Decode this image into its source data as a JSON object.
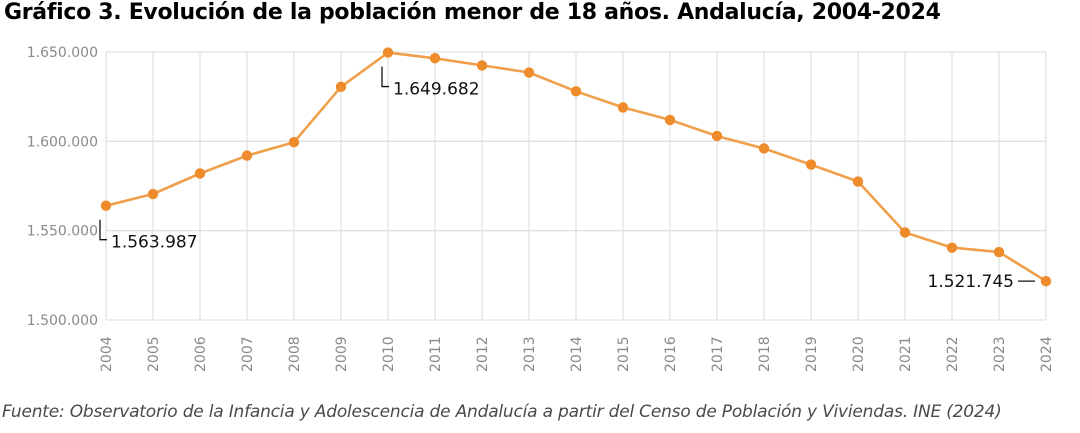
{
  "colors": {
    "line": "#F0A04B",
    "marker": "#EE8B2A",
    "grid": "#E2E2E2",
    "tick_text": "#8A8A8A",
    "annotation_text": "#111111"
  },
  "chart_data": {
    "type": "line",
    "title": "Gráfico 3. Evolución de la población menor de 18 años. Andalucía, 2004-2024",
    "xlabel": "",
    "ylabel": "",
    "ylim": [
      1500000,
      1650000
    ],
    "yticks": [
      1500000,
      1550000,
      1600000,
      1650000
    ],
    "ytick_labels": [
      "1.500.000",
      "1.550.000",
      "1.600.000",
      "1.650.000"
    ],
    "grid": true,
    "x": [
      "2004",
      "2005",
      "2006",
      "2007",
      "2008",
      "2009",
      "2010",
      "2011",
      "2012",
      "2013",
      "2014",
      "2015",
      "2016",
      "2017",
      "2018",
      "2019",
      "2020",
      "2021",
      "2022",
      "2023",
      "2024"
    ],
    "series": [
      {
        "name": "Población menor de 18 años",
        "values": [
          1563987,
          1570500,
          1582000,
          1592000,
          1599500,
          1630500,
          1649682,
          1646500,
          1642500,
          1638500,
          1628000,
          1619000,
          1612000,
          1603000,
          1596000,
          1587000,
          1577500,
          1549000,
          1540500,
          1538000,
          1521745
        ]
      }
    ],
    "annotations": [
      {
        "index": 0,
        "label": "1.563.987",
        "side": "below-right"
      },
      {
        "index": 6,
        "label": "1.649.682",
        "side": "below-right"
      },
      {
        "index": 20,
        "label": "1.521.745",
        "side": "left"
      }
    ]
  },
  "source_note": "Fuente: Observatorio de la Infancia y Adolescencia de Andalucía a partir del Censo de Población y Viviendas. INE (2024)"
}
